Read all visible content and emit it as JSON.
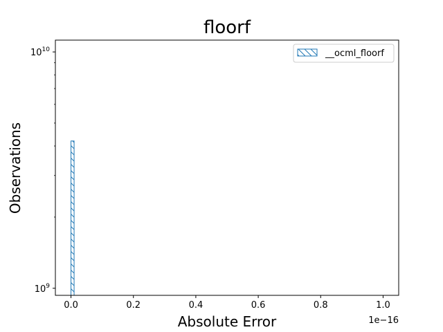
{
  "chart_data": {
    "type": "bar",
    "title": "floorf",
    "xlabel": "Absolute Error",
    "ylabel": "Observations",
    "x_offset_label": "1e−16",
    "x_unit_scale": 1e-16,
    "xlim": [
      -0.05,
      1.05
    ],
    "ylog": true,
    "ylim_log10": [
      8.97,
      10.05
    ],
    "x_ticks": [
      {
        "value": 0.0,
        "label": "0.0"
      },
      {
        "value": 0.2,
        "label": "0.2"
      },
      {
        "value": 0.4,
        "label": "0.4"
      },
      {
        "value": 0.6,
        "label": "0.6"
      },
      {
        "value": 0.8,
        "label": "0.8"
      },
      {
        "value": 1.0,
        "label": "1.0"
      }
    ],
    "y_ticks": [
      {
        "exp": 9,
        "base": "10",
        "sup": "9"
      },
      {
        "exp": 10,
        "base": "10",
        "sup": "10"
      }
    ],
    "series": [
      {
        "name": "__ocml_floorf",
        "color": "#1f77b4",
        "hatch": "\\\\",
        "bins": [
          {
            "x0": 0.0,
            "x1": 0.01,
            "count": 4200000000
          }
        ]
      }
    ],
    "legend": {
      "position": "top-right"
    },
    "grid": false
  }
}
